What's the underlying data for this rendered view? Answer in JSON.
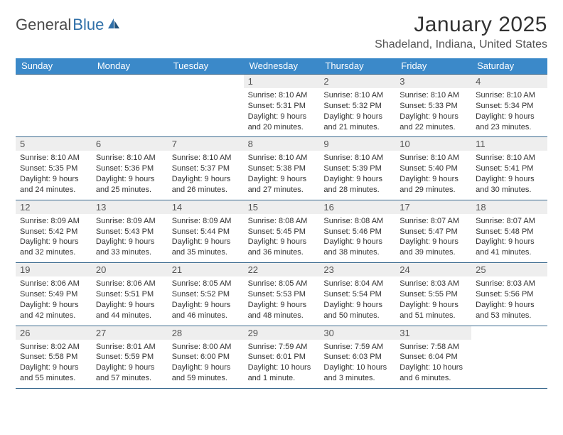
{
  "logo": {
    "word1": "General",
    "word2": "Blue",
    "text_color": "#4a4a4a",
    "accent_color": "#2f6fa8"
  },
  "title": "January 2025",
  "location": "Shadeland, Indiana, United States",
  "colors": {
    "header_bg": "#3b89c9",
    "header_text": "#ffffff",
    "daynum_bg": "#eeeeee",
    "week_border": "#3b6a8f",
    "page_bg": "#ffffff",
    "body_text": "#333333"
  },
  "weekdays": [
    "Sunday",
    "Monday",
    "Tuesday",
    "Wednesday",
    "Thursday",
    "Friday",
    "Saturday"
  ],
  "weeks": [
    [
      {
        "day": "",
        "lines": []
      },
      {
        "day": "",
        "lines": []
      },
      {
        "day": "",
        "lines": []
      },
      {
        "day": "1",
        "lines": [
          "Sunrise: 8:10 AM",
          "Sunset: 5:31 PM",
          "Daylight: 9 hours",
          "and 20 minutes."
        ]
      },
      {
        "day": "2",
        "lines": [
          "Sunrise: 8:10 AM",
          "Sunset: 5:32 PM",
          "Daylight: 9 hours",
          "and 21 minutes."
        ]
      },
      {
        "day": "3",
        "lines": [
          "Sunrise: 8:10 AM",
          "Sunset: 5:33 PM",
          "Daylight: 9 hours",
          "and 22 minutes."
        ]
      },
      {
        "day": "4",
        "lines": [
          "Sunrise: 8:10 AM",
          "Sunset: 5:34 PM",
          "Daylight: 9 hours",
          "and 23 minutes."
        ]
      }
    ],
    [
      {
        "day": "5",
        "lines": [
          "Sunrise: 8:10 AM",
          "Sunset: 5:35 PM",
          "Daylight: 9 hours",
          "and 24 minutes."
        ]
      },
      {
        "day": "6",
        "lines": [
          "Sunrise: 8:10 AM",
          "Sunset: 5:36 PM",
          "Daylight: 9 hours",
          "and 25 minutes."
        ]
      },
      {
        "day": "7",
        "lines": [
          "Sunrise: 8:10 AM",
          "Sunset: 5:37 PM",
          "Daylight: 9 hours",
          "and 26 minutes."
        ]
      },
      {
        "day": "8",
        "lines": [
          "Sunrise: 8:10 AM",
          "Sunset: 5:38 PM",
          "Daylight: 9 hours",
          "and 27 minutes."
        ]
      },
      {
        "day": "9",
        "lines": [
          "Sunrise: 8:10 AM",
          "Sunset: 5:39 PM",
          "Daylight: 9 hours",
          "and 28 minutes."
        ]
      },
      {
        "day": "10",
        "lines": [
          "Sunrise: 8:10 AM",
          "Sunset: 5:40 PM",
          "Daylight: 9 hours",
          "and 29 minutes."
        ]
      },
      {
        "day": "11",
        "lines": [
          "Sunrise: 8:10 AM",
          "Sunset: 5:41 PM",
          "Daylight: 9 hours",
          "and 30 minutes."
        ]
      }
    ],
    [
      {
        "day": "12",
        "lines": [
          "Sunrise: 8:09 AM",
          "Sunset: 5:42 PM",
          "Daylight: 9 hours",
          "and 32 minutes."
        ]
      },
      {
        "day": "13",
        "lines": [
          "Sunrise: 8:09 AM",
          "Sunset: 5:43 PM",
          "Daylight: 9 hours",
          "and 33 minutes."
        ]
      },
      {
        "day": "14",
        "lines": [
          "Sunrise: 8:09 AM",
          "Sunset: 5:44 PM",
          "Daylight: 9 hours",
          "and 35 minutes."
        ]
      },
      {
        "day": "15",
        "lines": [
          "Sunrise: 8:08 AM",
          "Sunset: 5:45 PM",
          "Daylight: 9 hours",
          "and 36 minutes."
        ]
      },
      {
        "day": "16",
        "lines": [
          "Sunrise: 8:08 AM",
          "Sunset: 5:46 PM",
          "Daylight: 9 hours",
          "and 38 minutes."
        ]
      },
      {
        "day": "17",
        "lines": [
          "Sunrise: 8:07 AM",
          "Sunset: 5:47 PM",
          "Daylight: 9 hours",
          "and 39 minutes."
        ]
      },
      {
        "day": "18",
        "lines": [
          "Sunrise: 8:07 AM",
          "Sunset: 5:48 PM",
          "Daylight: 9 hours",
          "and 41 minutes."
        ]
      }
    ],
    [
      {
        "day": "19",
        "lines": [
          "Sunrise: 8:06 AM",
          "Sunset: 5:49 PM",
          "Daylight: 9 hours",
          "and 42 minutes."
        ]
      },
      {
        "day": "20",
        "lines": [
          "Sunrise: 8:06 AM",
          "Sunset: 5:51 PM",
          "Daylight: 9 hours",
          "and 44 minutes."
        ]
      },
      {
        "day": "21",
        "lines": [
          "Sunrise: 8:05 AM",
          "Sunset: 5:52 PM",
          "Daylight: 9 hours",
          "and 46 minutes."
        ]
      },
      {
        "day": "22",
        "lines": [
          "Sunrise: 8:05 AM",
          "Sunset: 5:53 PM",
          "Daylight: 9 hours",
          "and 48 minutes."
        ]
      },
      {
        "day": "23",
        "lines": [
          "Sunrise: 8:04 AM",
          "Sunset: 5:54 PM",
          "Daylight: 9 hours",
          "and 50 minutes."
        ]
      },
      {
        "day": "24",
        "lines": [
          "Sunrise: 8:03 AM",
          "Sunset: 5:55 PM",
          "Daylight: 9 hours",
          "and 51 minutes."
        ]
      },
      {
        "day": "25",
        "lines": [
          "Sunrise: 8:03 AM",
          "Sunset: 5:56 PM",
          "Daylight: 9 hours",
          "and 53 minutes."
        ]
      }
    ],
    [
      {
        "day": "26",
        "lines": [
          "Sunrise: 8:02 AM",
          "Sunset: 5:58 PM",
          "Daylight: 9 hours",
          "and 55 minutes."
        ]
      },
      {
        "day": "27",
        "lines": [
          "Sunrise: 8:01 AM",
          "Sunset: 5:59 PM",
          "Daylight: 9 hours",
          "and 57 minutes."
        ]
      },
      {
        "day": "28",
        "lines": [
          "Sunrise: 8:00 AM",
          "Sunset: 6:00 PM",
          "Daylight: 9 hours",
          "and 59 minutes."
        ]
      },
      {
        "day": "29",
        "lines": [
          "Sunrise: 7:59 AM",
          "Sunset: 6:01 PM",
          "Daylight: 10 hours",
          "and 1 minute."
        ]
      },
      {
        "day": "30",
        "lines": [
          "Sunrise: 7:59 AM",
          "Sunset: 6:03 PM",
          "Daylight: 10 hours",
          "and 3 minutes."
        ]
      },
      {
        "day": "31",
        "lines": [
          "Sunrise: 7:58 AM",
          "Sunset: 6:04 PM",
          "Daylight: 10 hours",
          "and 6 minutes."
        ]
      },
      {
        "day": "",
        "lines": []
      }
    ]
  ]
}
